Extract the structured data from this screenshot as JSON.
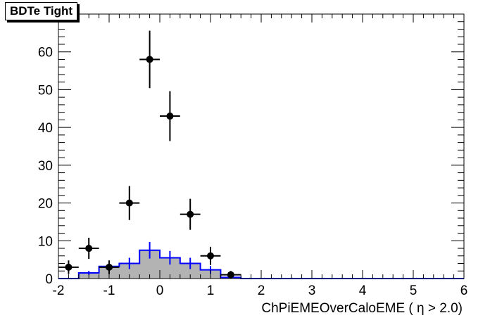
{
  "chart_data": {
    "type": "histogram",
    "title": "BDTe Tight",
    "xlabel": "ChPiEMEOverCaloEME (  η > 2.0)",
    "ylabel": "",
    "xlim": [
      -2,
      6
    ],
    "ylim": [
      0,
      70
    ],
    "x_ticks": [
      -2,
      -1,
      0,
      1,
      2,
      3,
      4,
      5,
      6
    ],
    "y_ticks": [
      0,
      10,
      20,
      30,
      40,
      50,
      60
    ],
    "grid": false,
    "legend": "none",
    "series": [
      {
        "kind": "filled-step-histogram",
        "color": "#0000ff",
        "fill": "#b3b3b3",
        "bin_edges": [
          -2.0,
          -1.6,
          -1.2,
          -0.8,
          -0.4,
          0.0,
          0.4,
          0.8,
          1.2,
          1.6,
          2.0,
          2.4,
          2.8,
          3.2,
          3.6,
          4.0,
          4.4,
          4.8,
          5.2,
          5.6,
          6.0
        ],
        "values": [
          0,
          1.5,
          3.2,
          4.0,
          7.5,
          5.5,
          4.0,
          2.3,
          0.3,
          0,
          0,
          0,
          0,
          0,
          0,
          0,
          0,
          0,
          0,
          0
        ],
        "errors": [
          0,
          0.5,
          0.7,
          1.5,
          2.2,
          1.8,
          1.5,
          1.0,
          0.3,
          0,
          0,
          0,
          0,
          0,
          0,
          0,
          0,
          0,
          0,
          0
        ]
      },
      {
        "kind": "points-with-errors",
        "color": "#000000",
        "x": [
          -1.8,
          -1.4,
          -1.0,
          -0.6,
          -0.2,
          0.2,
          0.6,
          1.0,
          1.4
        ],
        "x_halfwidth": 0.2,
        "y": [
          3,
          8,
          3,
          20,
          58,
          43,
          17,
          6,
          1
        ],
        "y_err_up": [
          1.8,
          2.8,
          1.8,
          4.5,
          7.6,
          6.6,
          4.1,
          2.4,
          1.0
        ],
        "y_err_down": [
          1.8,
          2.8,
          1.8,
          4.5,
          7.6,
          6.6,
          4.1,
          2.4,
          1.0
        ]
      }
    ]
  }
}
